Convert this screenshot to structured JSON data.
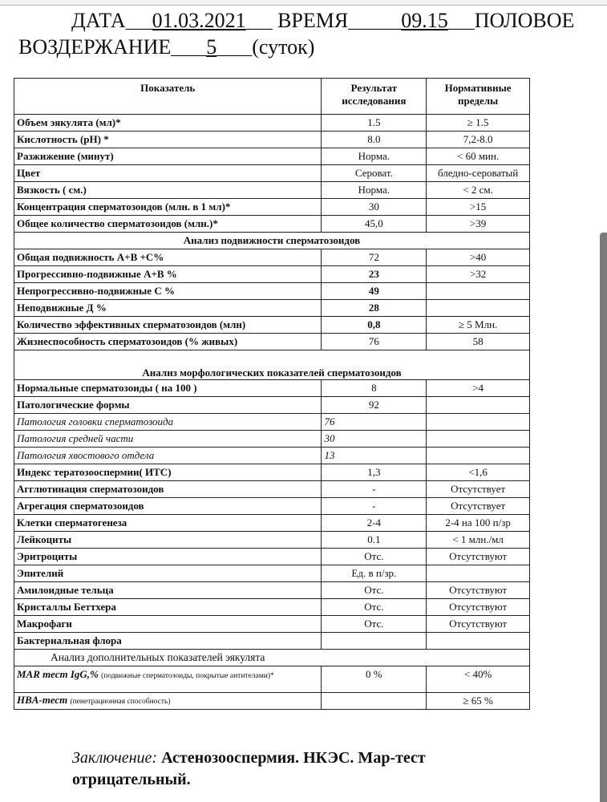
{
  "header": {
    "date_label": "ДАТА",
    "date_value": "01.03.2021",
    "time_label": "ВРЕМЯ",
    "time_value": "09.15",
    "abstinence_label_1": "ПОЛОВОЕ",
    "abstinence_label_2": "ВОЗДЕРЖАНИЕ",
    "abstinence_value": "5",
    "abstinence_unit": "(суток)"
  },
  "table": {
    "columns": [
      "Показатель",
      "Результат исследования",
      "Нормативные пределы"
    ],
    "rows": [
      {
        "type": "row",
        "name": "Объем  эякулята (мл)*",
        "result": "1.5",
        "norm": "≥ 1.5"
      },
      {
        "type": "row",
        "name": "Кислотность (pH) *",
        "result": "8.0",
        "norm": "7,2-8.0"
      },
      {
        "type": "row",
        "name": "Разжижение (минут)",
        "result": "Норма.",
        "norm": "< 60 мин."
      },
      {
        "type": "row",
        "name": "Цвет",
        "result": "Сероват.",
        "norm": "бледно-сероватый"
      },
      {
        "type": "row",
        "name": "Вязкость ( см.)",
        "result": "Норма.",
        "norm": "< 2 см."
      },
      {
        "type": "row",
        "name": "Концентрация сперматозоидов (млн. в 1 мл)*",
        "result": "30",
        "norm": ">15"
      },
      {
        "type": "row",
        "name": "Общее количество сперматозоидов (млн.)*",
        "result": "45,0",
        "norm": ">39"
      },
      {
        "type": "section",
        "name": "Анализ подвижности сперматозоидов"
      },
      {
        "type": "row",
        "name": "Общая подвижность А+В +С%",
        "result": "72",
        "norm": ">40"
      },
      {
        "type": "row",
        "name": "Прогрессивно-подвижные А+В %",
        "result": "23",
        "norm": ">32",
        "emph": true
      },
      {
        "type": "row",
        "name": "Непрогрессивно-подвижные С %",
        "result": "49",
        "norm": "",
        "emph": true
      },
      {
        "type": "row",
        "name": "Неподвижные Д %",
        "result": "28",
        "norm": "",
        "emph": true
      },
      {
        "type": "row",
        "name": "Количество эффективных сперматозоидов (млн)",
        "result": "0,8",
        "norm": "≥ 5 Млн.",
        "emph": true
      },
      {
        "type": "row",
        "name": "Жизнеспособность сперматозоидов (% живых)",
        "result": "76",
        "norm": "58"
      },
      {
        "type": "section_tall",
        "name": "Анализ морфологических показателей сперматозоидов"
      },
      {
        "type": "row",
        "name": "Нормальные сперматозоиды  ( на 100  )",
        "result": "8",
        "norm": ">4"
      },
      {
        "type": "row",
        "name": "Патологические формы",
        "result": "92",
        "norm": ""
      },
      {
        "type": "italic",
        "name": "Патология головки сперматозоида",
        "result": "76",
        "norm": ""
      },
      {
        "type": "italic",
        "name": "Патология средней части",
        "result": "30",
        "norm": ""
      },
      {
        "type": "italic",
        "name": "Патология хвостового отдела",
        "result": "13",
        "norm": ""
      },
      {
        "type": "row",
        "name": "Индекс тератозооспермии( ИТС)",
        "result": "1,3",
        "norm": "<1,6"
      },
      {
        "type": "row",
        "name": "Агглютинация сперматозоидов",
        "result": "-",
        "norm": "Отсутствует"
      },
      {
        "type": "row",
        "name": "Агрегация сперматозоидов",
        "result": "-",
        "norm": "Отсутствует"
      },
      {
        "type": "row",
        "name": "Клетки сперматогенеза",
        "result": "2-4",
        "norm": "2-4 на 100 п/зр"
      },
      {
        "type": "row",
        "name": "Лейкоциты",
        "result": "0.1",
        "norm": "< 1 млн./мл"
      },
      {
        "type": "row",
        "name": "Эритроциты",
        "result": "Отс.",
        "norm": "Отсутствуют"
      },
      {
        "type": "row",
        "name": "Эпителий",
        "result": "Ед. в п/зр.",
        "norm": ""
      },
      {
        "type": "row",
        "name": "Амилоидные тельца",
        "result": "Отс.",
        "norm": "Отсутствуют"
      },
      {
        "type": "row",
        "name": "Кристаллы Беттхера",
        "result": "Отс.",
        "norm": "Отсутствуют"
      },
      {
        "type": "row",
        "name": "Макрофаги",
        "result": "Отс.",
        "norm": "Отсутствуют"
      },
      {
        "type": "row",
        "name": "Бактериальная флора",
        "result": "",
        "norm": ""
      },
      {
        "type": "section_plain",
        "name": "Анализ дополнительных показателей эякулята"
      },
      {
        "type": "mar",
        "name": "MAR тест IgG,%",
        "note": "(подвижные сперматозоиды, покрытые антителами)*",
        "result": "0 %",
        "norm": "< 40%"
      },
      {
        "type": "hba",
        "name": "HBA-тест",
        "note": "(пенетрационная способность)",
        "result": "",
        "norm": "≥ 65 %"
      }
    ]
  },
  "conclusion": {
    "label": "Заключение:",
    "text": "Астенозооспермия. НКЭС. Мар-тест отрицательный."
  }
}
